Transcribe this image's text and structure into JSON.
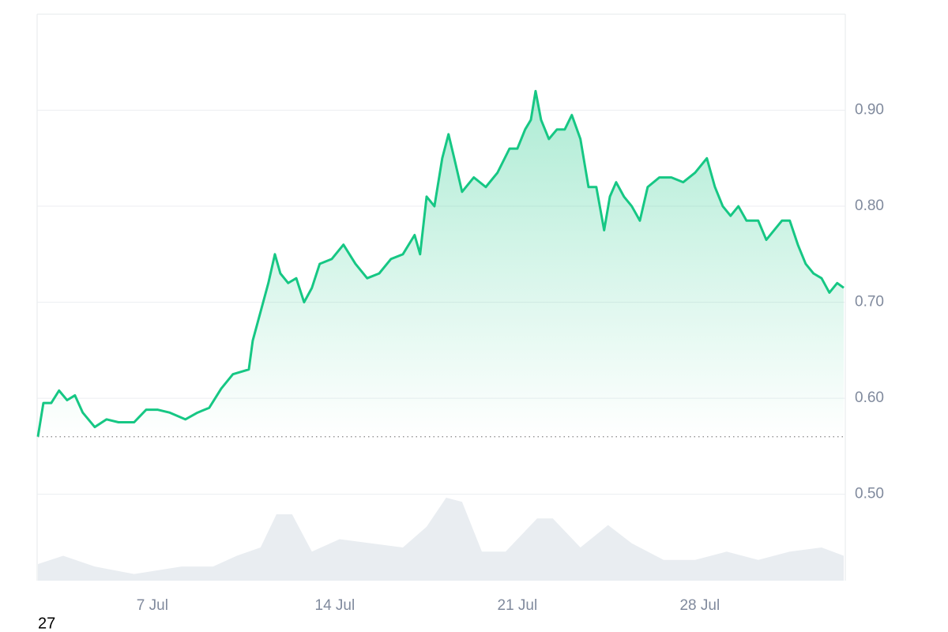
{
  "chart_data": {
    "type": "line",
    "x": [
      2.61,
      2.82,
      3.12,
      3.42,
      3.73,
      4.03,
      4.33,
      4.79,
      5.24,
      5.7,
      6.3,
      6.76,
      7.21,
      7.67,
      8.27,
      8.73,
      9.18,
      9.64,
      10.09,
      10.7,
      10.85,
      11.15,
      11.45,
      11.7,
      11.91,
      12.21,
      12.52,
      12.82,
      13.12,
      13.42,
      13.88,
      14.33,
      14.79,
      15.24,
      15.7,
      16.15,
      16.61,
      17.06,
      17.27,
      17.52,
      17.82,
      18.12,
      18.36,
      18.58,
      18.88,
      19.33,
      19.79,
      20.24,
      20.7,
      21.0,
      21.3,
      21.52,
      21.7,
      21.91,
      22.21,
      22.52,
      22.82,
      23.09,
      23.42,
      23.73,
      24.03,
      24.33,
      24.55,
      24.79,
      25.09,
      25.39,
      25.7,
      26.0,
      26.45,
      26.91,
      27.36,
      27.82,
      28.27,
      28.58,
      28.88,
      29.18,
      29.48,
      29.79,
      30.24,
      30.55,
      30.85,
      31.15,
      31.45,
      31.76,
      32.06,
      32.36,
      32.67,
      32.97,
      33.27,
      33.52
    ],
    "series": [
      {
        "color": "#16c784",
        "values": [
          0.56,
          0.595,
          0.595,
          0.608,
          0.598,
          0.603,
          0.585,
          0.57,
          0.578,
          0.575,
          0.575,
          0.588,
          0.588,
          0.585,
          0.578,
          0.585,
          0.59,
          0.61,
          0.625,
          0.63,
          0.66,
          0.69,
          0.72,
          0.75,
          0.73,
          0.72,
          0.725,
          0.7,
          0.715,
          0.74,
          0.745,
          0.76,
          0.74,
          0.725,
          0.73,
          0.745,
          0.75,
          0.77,
          0.75,
          0.81,
          0.8,
          0.85,
          0.875,
          0.85,
          0.815,
          0.83,
          0.82,
          0.835,
          0.86,
          0.86,
          0.88,
          0.89,
          0.92,
          0.89,
          0.87,
          0.88,
          0.88,
          0.895,
          0.87,
          0.82,
          0.82,
          0.775,
          0.81,
          0.825,
          0.81,
          0.8,
          0.785,
          0.82,
          0.83,
          0.83,
          0.825,
          0.835,
          0.85,
          0.82,
          0.8,
          0.79,
          0.8,
          0.785,
          0.785,
          0.765,
          0.775,
          0.785,
          0.785,
          0.76,
          0.74,
          0.73,
          0.725,
          0.71,
          0.72,
          0.715
        ]
      }
    ],
    "volume": {
      "color": "#e9edf1",
      "x": [
        2.61,
        3.58,
        4.79,
        6.3,
        8.12,
        9.33,
        10.24,
        11.15,
        11.76,
        12.36,
        13.12,
        14.18,
        15.39,
        16.61,
        17.52,
        18.27,
        18.88,
        19.64,
        20.55,
        21.76,
        22.36,
        23.42,
        24.48,
        25.39,
        26.61,
        27.82,
        29.03,
        30.24,
        31.45,
        32.67,
        33.52
      ],
      "values": [
        20,
        30,
        17,
        8,
        17,
        17,
        30,
        40,
        80,
        80,
        35,
        50,
        45,
        40,
        65,
        100,
        95,
        35,
        35,
        75,
        75,
        40,
        67,
        45,
        25,
        25,
        35,
        25,
        35,
        40,
        30
      ]
    },
    "xlim": [
      2.61,
      33.52
    ],
    "xticks": [
      {
        "value": 7,
        "label": "7 Jul"
      },
      {
        "value": 14,
        "label": "14 Jul"
      },
      {
        "value": 21,
        "label": "21 Jul"
      },
      {
        "value": 28,
        "label": "28 Jul"
      }
    ],
    "ylim": [
      0.41,
      1.0
    ],
    "yticks": [
      {
        "value": 0.5,
        "label": "0.50"
      },
      {
        "value": 0.6,
        "label": "0.60"
      },
      {
        "value": 0.7,
        "label": "0.70"
      },
      {
        "value": 0.8,
        "label": "0.80"
      },
      {
        "value": 0.9,
        "label": "0.90"
      }
    ],
    "baseline": 0.56,
    "grid": true,
    "annotation": "27"
  }
}
